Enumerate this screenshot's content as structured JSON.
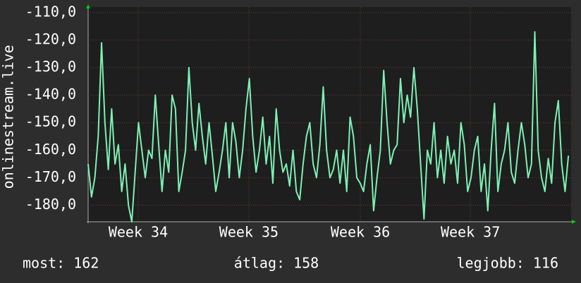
{
  "chart_data": {
    "type": "line",
    "y_label": "onlinestream.live",
    "color": "#7df0b4",
    "grid": true,
    "ylim": [
      -186,
      -108
    ],
    "yticks": [
      {
        "value": -110,
        "label": "-110,0"
      },
      {
        "value": -120,
        "label": "-120,0"
      },
      {
        "value": -130,
        "label": "-130,0"
      },
      {
        "value": -140,
        "label": "-140,0"
      },
      {
        "value": -150,
        "label": "-150,0"
      },
      {
        "value": -160,
        "label": "-160,0"
      },
      {
        "value": -170,
        "label": "-170,0"
      },
      {
        "value": -180,
        "label": "-180,0"
      }
    ],
    "xlim": [
      0,
      30.2
    ],
    "xticks": [
      {
        "value": 3.13,
        "label": "Week 34"
      },
      {
        "value": 10.05,
        "label": "Week 35"
      },
      {
        "value": 17.02,
        "label": "Week 36"
      },
      {
        "value": 23.9,
        "label": "Week 37"
      }
    ],
    "x": [
      0,
      0.21,
      0.42,
      0.63,
      0.84,
      1.05,
      1.26,
      1.47,
      1.68,
      1.89,
      2.1,
      2.31,
      2.52,
      2.73,
      2.94,
      3.15,
      3.36,
      3.57,
      3.78,
      3.99,
      4.2,
      4.41,
      4.62,
      4.83,
      5.04,
      5.25,
      5.46,
      5.67,
      5.88,
      6.09,
      6.3,
      6.51,
      6.72,
      6.93,
      7.14,
      7.35,
      7.56,
      7.77,
      7.98,
      8.19,
      8.4,
      8.61,
      8.82,
      9.03,
      9.24,
      9.45,
      9.66,
      9.87,
      10.08,
      10.29,
      10.5,
      10.71,
      10.92,
      11.13,
      11.34,
      11.55,
      11.76,
      11.97,
      12.18,
      12.39,
      12.6,
      12.81,
      13.02,
      13.23,
      13.44,
      13.65,
      13.86,
      14.07,
      14.28,
      14.49,
      14.7,
      14.91,
      15.12,
      15.33,
      15.54,
      15.75,
      15.96,
      16.17,
      16.38,
      16.59,
      16.8,
      17.01,
      17.22,
      17.43,
      17.64,
      17.85,
      18.06,
      18.27,
      18.48,
      18.69,
      18.9,
      19.11,
      19.32,
      19.53,
      19.74,
      19.95,
      20.16,
      20.37,
      20.58,
      20.79,
      21,
      21.21,
      21.42,
      21.63,
      21.84,
      22.05,
      22.26,
      22.47,
      22.68,
      22.89,
      23.1,
      23.31,
      23.52,
      23.73,
      23.94,
      24.15,
      24.36,
      24.57,
      24.78,
      24.99,
      25.2,
      25.41,
      25.62,
      25.83,
      26.04,
      26.25,
      26.46,
      26.67,
      26.88,
      27.09,
      27.3,
      27.51,
      27.72,
      27.93,
      28.14,
      28.35,
      28.56,
      28.77,
      28.98,
      29.19,
      29.4,
      29.61,
      29.82,
      30.03
    ],
    "values": [
      -165,
      -177,
      -170,
      -155,
      -121,
      -150,
      -167,
      -145,
      -165,
      -158,
      -175,
      -165,
      -180,
      -186,
      -168,
      -150,
      -160,
      -170,
      -160,
      -163,
      -140,
      -158,
      -175,
      -160,
      -168,
      -140,
      -145,
      -175,
      -168,
      -160,
      -130,
      -150,
      -160,
      -143,
      -155,
      -165,
      -150,
      -162,
      -175,
      -168,
      -160,
      -150,
      -170,
      -150,
      -157,
      -170,
      -160,
      -145,
      -134,
      -155,
      -168,
      -160,
      -148,
      -165,
      -155,
      -172,
      -145,
      -160,
      -168,
      -165,
      -173,
      -160,
      -175,
      -178,
      -165,
      -155,
      -150,
      -165,
      -170,
      -158,
      -137,
      -160,
      -170,
      -167,
      -160,
      -172,
      -160,
      -175,
      -148,
      -155,
      -170,
      -172,
      -175,
      -165,
      -158,
      -182,
      -170,
      -160,
      -131,
      -150,
      -165,
      -160,
      -158,
      -134,
      -150,
      -140,
      -148,
      -130,
      -145,
      -165,
      -185,
      -160,
      -165,
      -150,
      -170,
      -160,
      -172,
      -155,
      -165,
      -160,
      -172,
      -150,
      -158,
      -175,
      -170,
      -160,
      -155,
      -175,
      -165,
      -182,
      -160,
      -143,
      -175,
      -165,
      -160,
      -150,
      -168,
      -172,
      -160,
      -150,
      -158,
      -170,
      -165,
      -117,
      -160,
      -170,
      -175,
      -163,
      -172,
      -150,
      -142,
      -165,
      -175,
      -162
    ],
    "stats": [
      "most: 162",
      "átlag: 158",
      "legjobb: 116"
    ]
  }
}
